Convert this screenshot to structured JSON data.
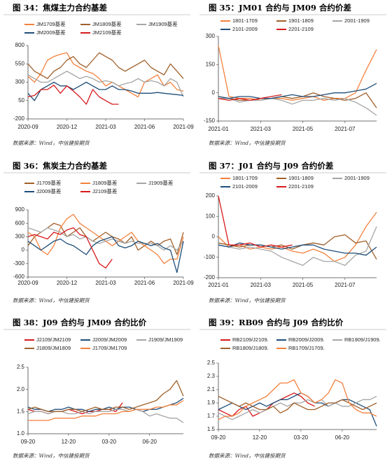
{
  "chart_data": [
    {
      "type": "line",
      "title": "图 34：焦煤主力合约基差",
      "source": "数据来源：Wind，中信建投期货",
      "x": [
        "2020-09",
        null,
        null,
        null,
        null,
        null,
        "2020-12",
        null,
        null,
        null,
        null,
        null,
        "2021-03",
        null,
        null,
        null,
        null,
        null,
        "2021-06",
        null,
        null,
        null,
        null,
        null,
        "2021-09"
      ],
      "ylim": [
        -200,
        800
      ],
      "yticks": [
        -200,
        50,
        300,
        550,
        800
      ],
      "series": [
        {
          "name": "JM1709基差",
          "color": "#f4813d",
          "values": [
            380,
            300,
            420,
            600,
            650,
            680,
            700,
            550,
            500,
            450,
            420,
            350,
            250,
            300,
            250,
            200,
            150,
            100,
            300,
            350,
            400,
            250,
            300,
            200,
            180
          ]
        },
        {
          "name": "JM1809基差",
          "color": "#a0602a",
          "values": [
            550,
            450,
            400,
            350,
            450,
            500,
            600,
            650,
            550,
            500,
            600,
            700,
            650,
            600,
            500,
            450,
            500,
            550,
            600,
            500,
            450,
            400,
            550,
            450,
            350
          ]
        },
        {
          "name": "JM1909基差",
          "color": "#a6a6a6",
          "values": [
            400,
            350,
            300,
            300,
            350,
            400,
            450,
            400,
            350,
            380,
            350,
            300,
            320,
            300,
            250,
            280,
            300,
            350,
            300,
            320,
            300,
            250,
            350,
            300,
            100
          ]
        },
        {
          "name": "JM2009基差",
          "color": "#1f4e79",
          "values": [
            150,
            50,
            200,
            250,
            300,
            250,
            250,
            200,
            250,
            300,
            250,
            200,
            200,
            250,
            200,
            200,
            180,
            150,
            150,
            150,
            160,
            150,
            140,
            130,
            120
          ]
        },
        {
          "name": "JM2109基差",
          "color": "#d7191c",
          "values": [
            100,
            120,
            200,
            200,
            260,
            150,
            250,
            180,
            100,
            0,
            200,
            100,
            50,
            0,
            0,
            null,
            null,
            null,
            null,
            null,
            null,
            null,
            null,
            null,
            null
          ]
        }
      ]
    },
    {
      "type": "line",
      "title": "图 35：JM01 合约与 JM09 合约价差",
      "source": "数据来源：Wind，中信建投期货",
      "x": [
        "2021-01",
        null,
        null,
        null,
        "2021-03",
        null,
        null,
        null,
        "2021-05",
        null,
        null,
        null,
        "2021-07",
        null,
        null,
        null
      ],
      "ylim": [
        -150,
        300
      ],
      "yticks": [
        -150,
        0,
        150,
        300
      ],
      "series": [
        {
          "name": "1801-1709",
          "color": "#f4813d",
          "values": [
            250,
            -20,
            -30,
            -30,
            -40,
            -30,
            -30,
            -40,
            -30,
            -20,
            -40,
            -30,
            -30,
            0,
            120,
            230
          ]
        },
        {
          "name": "1901-1809",
          "color": "#a0602a",
          "values": [
            -20,
            -30,
            -40,
            -40,
            -30,
            -30,
            -20,
            -30,
            -20,
            0,
            -20,
            -30,
            -40,
            -30,
            0,
            -80
          ]
        },
        {
          "name": "2001-1909",
          "color": "#a6a6a6",
          "values": [
            -30,
            -30,
            -50,
            -40,
            -40,
            -30,
            -40,
            -60,
            -40,
            -40,
            -30,
            -40,
            -30,
            -50,
            -80,
            -120
          ]
        },
        {
          "name": "2101-2009",
          "color": "#1f4e79",
          "values": [
            -20,
            -30,
            -20,
            -20,
            -30,
            -30,
            -20,
            -10,
            -20,
            -20,
            -10,
            0,
            0,
            10,
            20,
            50
          ]
        },
        {
          "name": "2201-2109",
          "color": "#d7191c",
          "values": [
            -30,
            -40,
            -30,
            -40,
            -30,
            -20,
            -10,
            null,
            null,
            null,
            null,
            null,
            null,
            null,
            null,
            null
          ]
        }
      ]
    },
    {
      "type": "line",
      "title": "图 36：焦炭主力合约基差",
      "source": "数据来源：Wind，中信建投期货",
      "x": [
        "2020-09",
        null,
        null,
        null,
        null,
        null,
        "2020-12",
        null,
        null,
        null,
        null,
        null,
        "2021-03",
        null,
        null,
        null,
        null,
        null,
        "2021-06",
        null,
        null,
        null,
        null,
        null,
        "2021-09"
      ],
      "ylim": [
        -600,
        900
      ],
      "yticks": [
        -600,
        -300,
        0,
        300,
        600,
        900
      ],
      "series": [
        {
          "name": "J1709基差",
          "color": "#a0602a",
          "values": [
            100,
            300,
            400,
            500,
            600,
            550,
            300,
            400,
            500,
            300,
            200,
            300,
            400,
            300,
            250,
            150,
            300,
            0,
            100,
            200,
            100,
            200,
            250,
            -100,
            400
          ]
        },
        {
          "name": "J1809基差",
          "color": "#f4813d",
          "values": [
            400,
            300,
            0,
            -100,
            100,
            500,
            700,
            800,
            600,
            500,
            400,
            300,
            200,
            100,
            200,
            300,
            400,
            200,
            100,
            0,
            -100,
            -300,
            -200,
            -200,
            300
          ]
        },
        {
          "name": "J1909基差",
          "color": "#a6a6a6",
          "values": [
            500,
            450,
            400,
            500,
            450,
            400,
            300,
            350,
            250,
            300,
            200,
            150,
            200,
            250,
            200,
            150,
            200,
            150,
            150,
            150,
            100,
            0,
            100,
            0,
            200
          ]
        },
        {
          "name": "J2009基差",
          "color": "#1f4e79",
          "values": [
            200,
            100,
            0,
            100,
            200,
            250,
            150,
            100,
            0,
            -100,
            100,
            200,
            250,
            300,
            100,
            50,
            100,
            200,
            150,
            100,
            150,
            50,
            0,
            -500,
            200
          ]
        },
        {
          "name": "J2109基差",
          "color": "#d7191c",
          "values": [
            300,
            350,
            300,
            250,
            400,
            350,
            450,
            500,
            350,
            300,
            0,
            -300,
            -400,
            -200,
            null,
            null,
            null,
            null,
            null,
            null,
            null,
            null,
            null,
            null,
            null
          ]
        }
      ]
    },
    {
      "type": "line",
      "title": "图 37：J01 合约与 J09 合约价差",
      "source": "数据来源：Wind，中信建投期货",
      "x": [
        "2021-01",
        null,
        null,
        null,
        "2021-03",
        null,
        null,
        null,
        "2021-05",
        null,
        null,
        null,
        "2021-07",
        null,
        null,
        null
      ],
      "ylim": [
        -200,
        200
      ],
      "yticks": [
        -200,
        -100,
        0,
        100,
        200
      ],
      "series": [
        {
          "name": "1801-1709",
          "color": "#f4813d",
          "values": [
            0,
            -50,
            -40,
            -60,
            -50,
            -60,
            -50,
            -70,
            -80,
            -60,
            -80,
            -120,
            -100,
            -40,
            50,
            120
          ]
        },
        {
          "name": "1901-1809",
          "color": "#a0602a",
          "values": [
            -30,
            -40,
            -50,
            -40,
            -40,
            -50,
            -40,
            -60,
            -40,
            -30,
            -40,
            0,
            10,
            -30,
            -20,
            -110
          ]
        },
        {
          "name": "2001-1909",
          "color": "#a6a6a6",
          "values": [
            -40,
            -50,
            -60,
            -50,
            -60,
            -70,
            -100,
            -120,
            -140,
            -100,
            -120,
            -120,
            -140,
            -90,
            -70,
            50
          ]
        },
        {
          "name": "2101-2009",
          "color": "#1f4e79",
          "values": [
            -40,
            -50,
            -30,
            -40,
            -40,
            -50,
            -60,
            -50,
            -40,
            -40,
            -60,
            -70,
            -80,
            -80,
            -90,
            -50
          ]
        },
        {
          "name": "2201-2109",
          "color": "#d7191c",
          "values": [
            200,
            -40,
            -40,
            -30,
            -50,
            -40,
            -50,
            -40,
            null,
            null,
            null,
            null,
            null,
            null,
            null,
            null
          ]
        }
      ]
    },
    {
      "type": "line",
      "title": "图 38：J09 合约与 JM09 合约比价",
      "source": "数据来源：Wind，中信建投期货",
      "x": [
        "09-20",
        null,
        null,
        null,
        null,
        null,
        "12-20",
        null,
        null,
        null,
        null,
        null,
        "03-20",
        null,
        null,
        null,
        null,
        null,
        "06-20",
        null,
        null,
        null,
        null,
        null
      ],
      "ylim": [
        1.0,
        2.5
      ],
      "yticks": [
        {
          "value": 1.0,
          "label": "1.0"
        },
        1.5,
        {
          "value": 2.0,
          "label": "2.0"
        },
        2.5
      ],
      "series": [
        {
          "name": "J2109/JM2109",
          "color": "#d7191c",
          "values": [
            1.55,
            1.5,
            1.5,
            1.45,
            1.5,
            1.5,
            1.55,
            1.5,
            1.45,
            1.5,
            1.5,
            1.55,
            1.55,
            1.5,
            1.7,
            null,
            null,
            null,
            null,
            null,
            null,
            null,
            null,
            null
          ]
        },
        {
          "name": "J2009/JM2009",
          "color": "#1f4e79",
          "values": [
            1.6,
            1.55,
            1.55,
            1.5,
            1.55,
            1.55,
            1.6,
            1.55,
            1.55,
            1.5,
            1.55,
            1.55,
            1.6,
            1.55,
            1.6,
            1.6,
            1.55,
            1.5,
            1.55,
            1.55,
            1.6,
            1.65,
            1.7,
            1.8
          ]
        },
        {
          "name": "J1909/JM1909",
          "color": "#a6a6a6",
          "values": [
            1.45,
            1.5,
            1.5,
            1.45,
            1.5,
            1.5,
            1.45,
            1.45,
            1.5,
            1.45,
            1.5,
            1.5,
            1.5,
            1.55,
            1.55,
            1.5,
            1.55,
            1.5,
            1.4,
            1.45,
            1.4,
            1.35,
            1.35,
            1.25
          ]
        },
        {
          "name": "J1809/JM1809",
          "color": "#a0602a",
          "values": [
            1.55,
            1.6,
            1.55,
            1.5,
            1.5,
            1.5,
            1.55,
            1.55,
            1.5,
            1.55,
            1.6,
            1.55,
            1.55,
            1.6,
            1.6,
            1.55,
            1.6,
            1.65,
            1.7,
            1.75,
            1.9,
            2.0,
            2.2,
            1.85
          ]
        },
        {
          "name": "J1709/JM1709",
          "color": "#f4813d",
          "values": [
            1.3,
            1.3,
            1.3,
            1.3,
            1.35,
            1.35,
            1.35,
            1.35,
            1.4,
            1.4,
            1.4,
            1.45,
            1.45,
            1.45,
            1.5,
            1.5,
            1.55,
            1.55,
            1.55,
            1.6,
            1.6,
            1.65,
            1.65,
            1.75
          ]
        }
      ]
    },
    {
      "type": "line",
      "title": "图 39：RB09 合约与 J09 合约比价",
      "source": "数据来源：Wind，中信建投期货",
      "x": [
        "09-20",
        null,
        null,
        null,
        null,
        null,
        "12-20",
        null,
        null,
        null,
        null,
        null,
        "03-20",
        null,
        null,
        null,
        null,
        null,
        "06-20",
        null,
        null,
        null,
        null,
        null
      ],
      "ylim": [
        1.5,
        2.5
      ],
      "yticks": [
        1.5,
        1.7,
        1.9,
        2.1,
        2.3,
        2.5
      ],
      "series": [
        {
          "name": "RB2109/J2109.",
          "color": "#d7191c",
          "values": [
            1.8,
            1.75,
            1.7,
            1.8,
            1.85,
            1.7,
            1.75,
            1.8,
            1.9,
            1.95,
            2.0,
            2.05,
            2.0,
            1.9,
            1.85,
            null,
            null,
            null,
            null,
            null,
            null,
            null,
            null,
            null
          ]
        },
        {
          "name": "RB2009/J2009.",
          "color": "#1f4e79",
          "values": [
            1.8,
            1.85,
            1.9,
            1.85,
            1.8,
            1.85,
            1.9,
            1.85,
            1.9,
            1.95,
            1.95,
            2.0,
            2.05,
            2.0,
            1.9,
            1.9,
            1.85,
            1.9,
            1.95,
            1.95,
            1.9,
            1.85,
            1.8,
            1.55
          ]
        },
        {
          "name": "RB1909/J1909.",
          "color": "#a6a6a6",
          "values": [
            1.75,
            1.7,
            1.65,
            1.7,
            1.75,
            1.8,
            1.75,
            1.8,
            1.85,
            1.9,
            1.85,
            1.9,
            1.9,
            1.95,
            1.9,
            1.95,
            1.85,
            1.9,
            1.85,
            1.85,
            1.9,
            1.95,
            1.95,
            2.0
          ]
        },
        {
          "name": "RB1809/J1809.",
          "color": "#a0602a",
          "values": [
            2.0,
            1.95,
            1.9,
            1.85,
            1.9,
            1.85,
            1.8,
            1.8,
            1.85,
            1.75,
            1.8,
            1.9,
            1.85,
            1.8,
            1.8,
            1.85,
            1.9,
            1.9,
            1.95,
            1.9,
            1.85,
            1.8,
            1.85,
            1.9
          ]
        },
        {
          "name": "RB1709/J1709.",
          "color": "#f4813d",
          "values": [
            1.65,
            1.7,
            1.7,
            1.75,
            1.85,
            1.9,
            1.95,
            2.0,
            2.1,
            2.2,
            2.2,
            2.25,
            2.05,
            2.0,
            1.9,
            1.95,
            2.05,
            2.25,
            2.2,
            1.9,
            1.8,
            1.75,
            1.75,
            1.7
          ]
        }
      ]
    }
  ]
}
